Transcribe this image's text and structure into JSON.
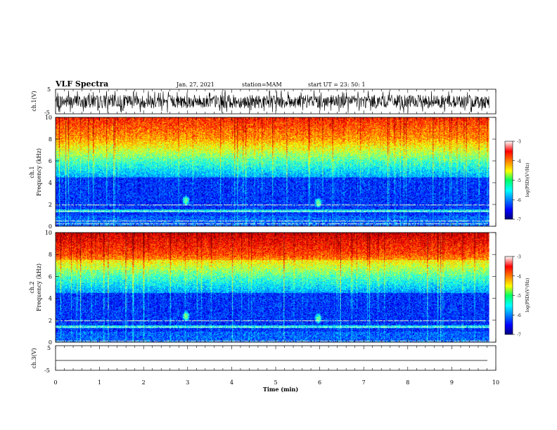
{
  "header": {
    "title": "VLF Spectra",
    "date": "Jan. 27, 2021",
    "station": "station=MAM",
    "start": "start  UT  =   23: 50: 1"
  },
  "chart_data": {
    "type": "heatmap",
    "xlabel": "Time  (min)",
    "xlim": [
      0,
      10
    ],
    "x_ticks": [
      "0",
      "1",
      "2",
      "3",
      "4",
      "5",
      "6",
      "7",
      "8",
      "9",
      "10"
    ],
    "data_end_min": 9.85,
    "panels": [
      {
        "kind": "waveform",
        "ylabel": "ch.1(V)",
        "ylim": [
          -5,
          5
        ],
        "y_ticks": [
          "5",
          "-5"
        ],
        "amplitude_note": "noisy, about -4 to +4 V"
      },
      {
        "kind": "spectrogram",
        "ylabel_1": "ch.1",
        "ylabel_2": "Frequency  (kHz)",
        "ylim": [
          0,
          10
        ],
        "y_ticks": [
          "0",
          "2",
          "4",
          "6",
          "8",
          "10"
        ],
        "features": [
          {
            "time_min": 3.0,
            "freq_khz": 2.4,
            "note": "burst"
          },
          {
            "time_min": 6.05,
            "freq_khz": 2.2,
            "note": "burst"
          }
        ],
        "lines_khz": [
          0.25,
          0.5,
          1.4,
          2.0
        ]
      },
      {
        "kind": "spectrogram",
        "ylabel_1": "ch.2",
        "ylabel_2": "Frequency  (kHz)",
        "ylim": [
          0,
          10
        ],
        "y_ticks": [
          "0",
          "2",
          "4",
          "6",
          "8",
          "10"
        ],
        "features": [
          {
            "time_min": 3.0,
            "freq_khz": 2.4,
            "note": "burst"
          },
          {
            "time_min": 6.05,
            "freq_khz": 2.2,
            "note": "burst"
          }
        ],
        "lines_khz": [
          0.1,
          1.4,
          2.0
        ]
      },
      {
        "kind": "waveform",
        "ylabel": "ch.3(V)",
        "ylim": [
          -5,
          5
        ],
        "y_ticks": [
          "5",
          "-5"
        ],
        "amplitude_note": "flat line near -1 V"
      }
    ],
    "colorbar": {
      "label": "log(PSD)(V²/Hz)",
      "range": [
        -7,
        -3
      ],
      "ticks": [
        "-3",
        "-4",
        "-5",
        "-6",
        "-7"
      ],
      "colormap": "jet"
    }
  }
}
